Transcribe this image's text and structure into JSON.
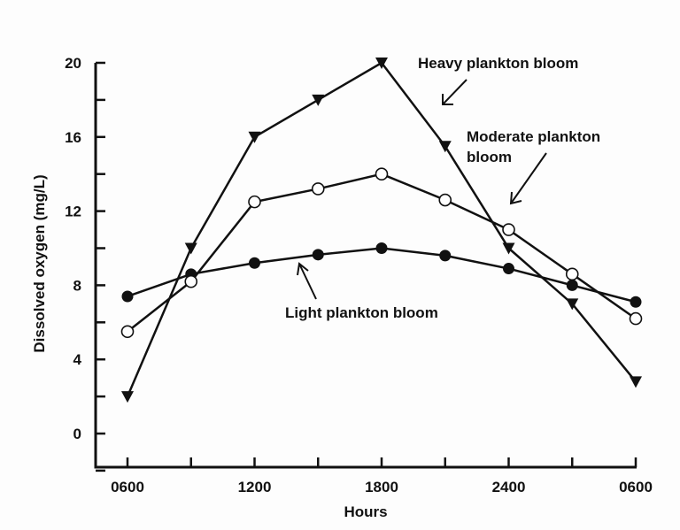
{
  "chart_data": {
    "type": "line",
    "title": "",
    "xlabel": "Hours",
    "ylabel": "Dissolved oxygen (mg/L)",
    "x": [
      "0600",
      "0900",
      "1200",
      "1500",
      "1800",
      "2100",
      "2400",
      "0300",
      "0600"
    ],
    "x_tick_labels": [
      "0600",
      "1200",
      "1800",
      "2400",
      "0600"
    ],
    "y_ticks": [
      0,
      4,
      8,
      12,
      16,
      20
    ],
    "ylim": [
      -2,
      20
    ],
    "grid": false,
    "legend": "none (inline annotations with arrows)",
    "series": [
      {
        "name": "Heavy plankton bloom",
        "marker": "filled-down-triangle",
        "values": [
          2,
          10,
          16,
          18,
          20,
          15.5,
          10,
          7,
          2.8
        ]
      },
      {
        "name": "Moderate plankton bloom",
        "marker": "open-circle",
        "values": [
          5.5,
          8.2,
          12.5,
          13.2,
          14,
          12.6,
          11,
          8.6,
          6.2
        ]
      },
      {
        "name": "Light plankton bloom",
        "marker": "filled-circle",
        "values": [
          7.4,
          8.6,
          9.2,
          9.65,
          10,
          9.6,
          8.9,
          8.0,
          7.1
        ]
      }
    ],
    "annotations": [
      {
        "text": "Heavy plankton bloom",
        "lines": [
          "Heavy plankton bloom"
        ]
      },
      {
        "text": "Moderate plankton bloom",
        "lines": [
          "Moderate plankton",
          "bloom"
        ]
      },
      {
        "text": "Light plankton bloom",
        "lines": [
          "Light plankton bloom"
        ]
      }
    ]
  }
}
